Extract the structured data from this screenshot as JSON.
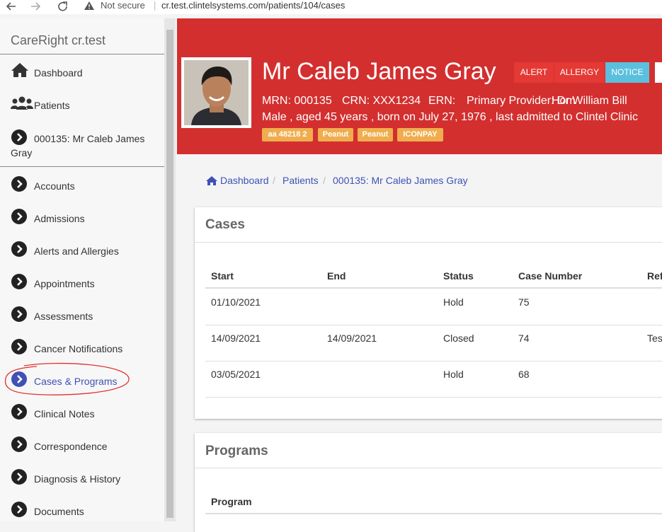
{
  "browser": {
    "security": "Not secure",
    "url": "cr.test.clintelsystems.com/patients/104/cases"
  },
  "sidebar": {
    "brand": "CareRight cr.test",
    "top_nav": [
      "Dashboard",
      "Patients",
      "000135: Mr Caleb James Gray"
    ],
    "menu": [
      "Accounts",
      "Admissions",
      "Alerts and Allergies",
      "Appointments",
      "Assessments",
      "Cancer Notifications",
      "Cases & Programs",
      "Clinical Notes",
      "Correspondence",
      "Diagnosis & History",
      "Documents"
    ]
  },
  "patient": {
    "name": "Mr Caleb James Gray",
    "badges": [
      "ALERT",
      "ALLERGY",
      "NOTICE"
    ],
    "info_line": [
      "MRN: 000135",
      "CRN: XXX1234",
      "ERN:",
      "Primary Provider: Dr William Bill",
      "Hom"
    ],
    "details": "Male , aged 45 years , born on July 27, 1976 , last admitted to Clintel Clinic",
    "tags": [
      "aa 48218 2",
      "Peanut",
      "Peanut",
      "ICONPAY"
    ]
  },
  "breadcrumb": [
    "Dashboard",
    "Patients",
    "000135: Mr Caleb James Gray"
  ],
  "cases": {
    "title": "Cases",
    "columns": [
      "Start",
      "End",
      "Status",
      "Case Number",
      "Ref"
    ],
    "rows": [
      [
        "01/10/2021",
        null,
        "Hold",
        "75",
        null
      ],
      [
        "14/09/2021",
        "14/09/2021",
        "Closed",
        "74",
        "Tes"
      ],
      [
        "03/05/2021",
        null,
        "Hold",
        "68",
        null
      ]
    ]
  },
  "programs": {
    "title": "Programs",
    "columns": [
      "Program"
    ]
  }
}
